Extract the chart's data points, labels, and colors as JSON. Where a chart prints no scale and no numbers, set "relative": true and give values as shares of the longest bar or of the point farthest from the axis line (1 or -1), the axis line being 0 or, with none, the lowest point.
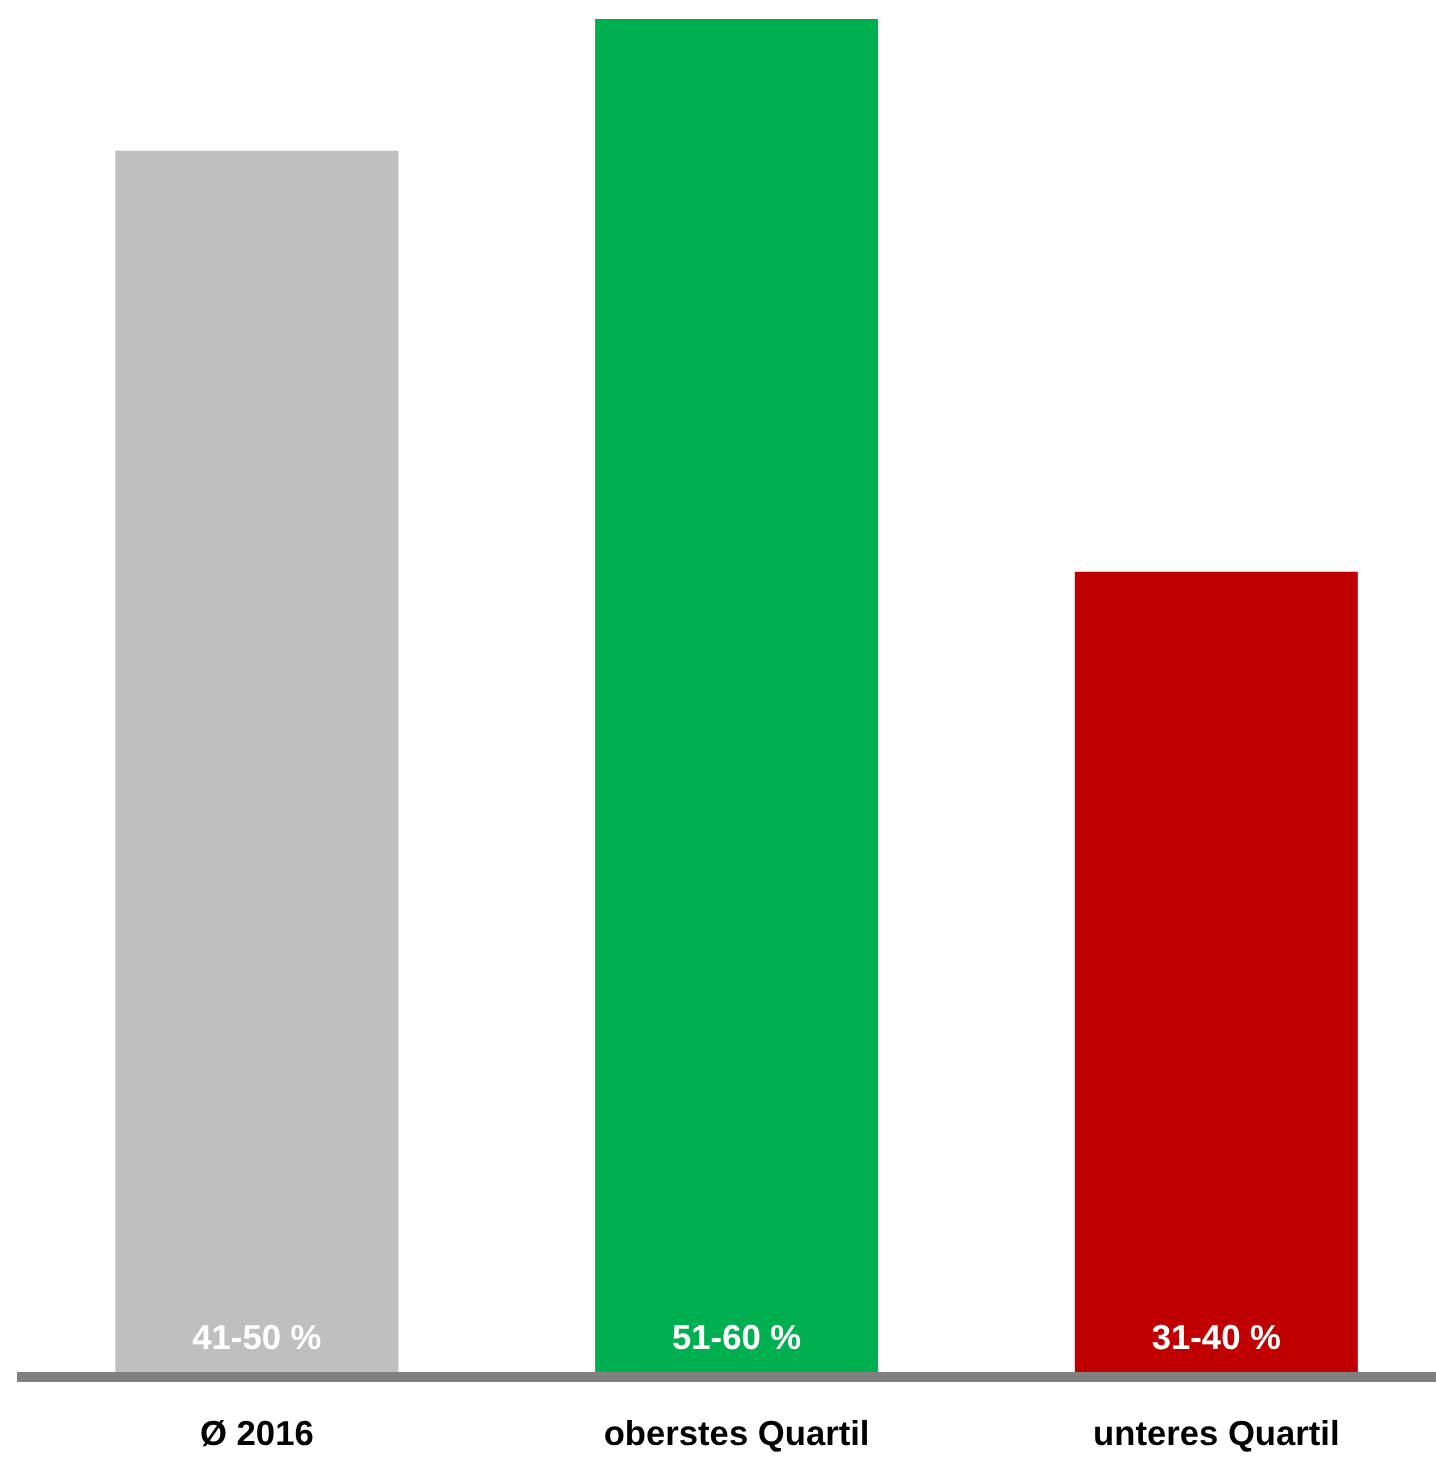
{
  "chart_data": {
    "type": "bar",
    "relative": true,
    "categories": [
      "Ø 2016",
      "oberstes Quartil",
      "unteres Quartil"
    ],
    "values": [
      0.903,
      1,
      0.593
    ],
    "colors": [
      "#bfbfbf",
      "#00b050",
      "#c00000"
    ],
    "annotations": [
      "41-50 %",
      "51-60 %",
      "31-40 %"
    ],
    "grid": false
  }
}
